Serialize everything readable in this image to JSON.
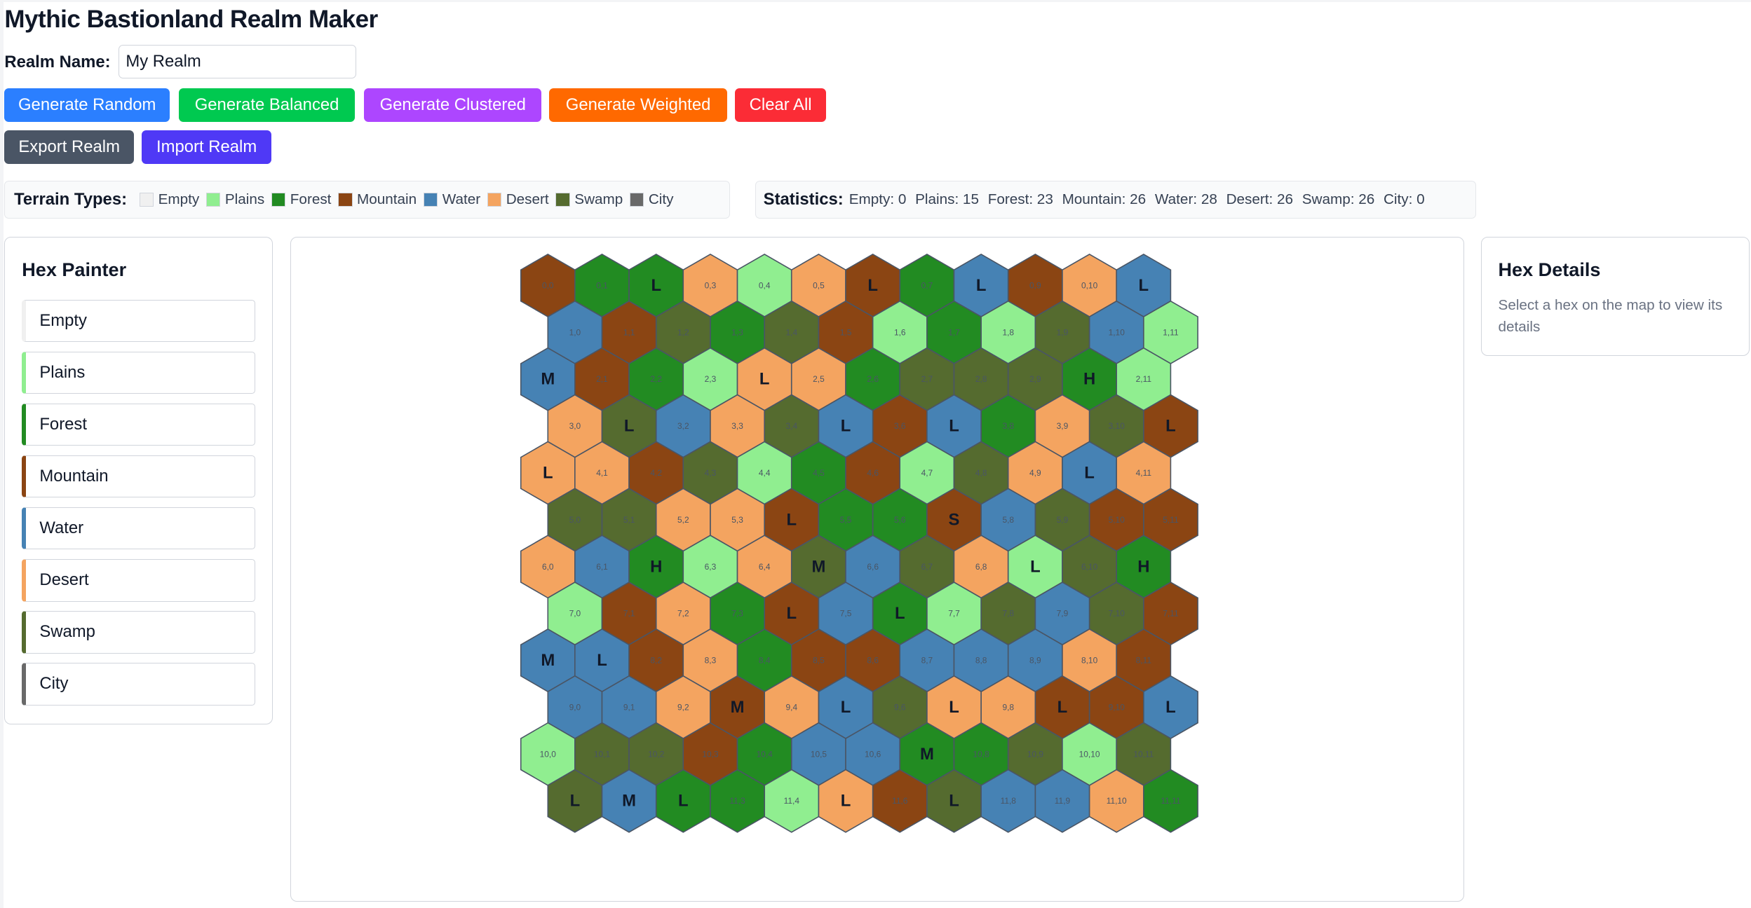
{
  "app": {
    "title": "Mythic Bastionland Realm Maker"
  },
  "realm_name": {
    "label": "Realm Name:",
    "value": "My Realm"
  },
  "toolbar": {
    "generate_random": "Generate Random",
    "generate_balanced": "Generate Balanced",
    "generate_clustered": "Generate Clustered",
    "generate_weighted": "Generate Weighted",
    "clear_all": "Clear All",
    "export": "Export Realm",
    "import": "Import Realm"
  },
  "button_colors": {
    "random": "#2b7fff",
    "balanced": "#00c950",
    "clustered": "#ad46ff",
    "weighted": "#ff6900",
    "clear": "#fb2c36",
    "export": "#4a5565",
    "import": "#4f39f6"
  },
  "terrain": {
    "label": "Terrain Types:",
    "types": [
      {
        "key": "empty",
        "name": "Empty",
        "color": "#f0f0f0"
      },
      {
        "key": "plains",
        "name": "Plains",
        "color": "#90ee90"
      },
      {
        "key": "forest",
        "name": "Forest",
        "color": "#228b22"
      },
      {
        "key": "mountain",
        "name": "Mountain",
        "color": "#8b4513"
      },
      {
        "key": "water",
        "name": "Water",
        "color": "#4682b4"
      },
      {
        "key": "desert",
        "name": "Desert",
        "color": "#f4a460"
      },
      {
        "key": "swamp",
        "name": "Swamp",
        "color": "#556b2f"
      },
      {
        "key": "city",
        "name": "City",
        "color": "#696969"
      }
    ]
  },
  "statistics": {
    "label": "Statistics:",
    "items": [
      "Empty: 0",
      "Plains: 15",
      "Forest: 23",
      "Mountain: 26",
      "Water: 28",
      "Desert: 26",
      "Swamp: 26",
      "City: 0"
    ]
  },
  "painter": {
    "title": "Hex Painter"
  },
  "details": {
    "title": "Hex Details",
    "placeholder": "Select a hex on the map to view its details"
  },
  "map": {
    "rows": [
      [
        "mountain",
        "forest",
        "forest",
        "desert",
        "plains",
        "desert",
        "mountain",
        "forest",
        "water",
        "mountain",
        "desert",
        "water"
      ],
      [
        "water",
        "mountain",
        "swamp",
        "forest",
        "swamp",
        "mountain",
        "plains",
        "forest",
        "plains",
        "swamp",
        "water",
        "plains"
      ],
      [
        "water",
        "mountain",
        "forest",
        "plains",
        "desert",
        "desert",
        "forest",
        "swamp",
        "swamp",
        "swamp",
        "forest",
        "plains"
      ],
      [
        "desert",
        "swamp",
        "water",
        "desert",
        "swamp",
        "water",
        "mountain",
        "water",
        "forest",
        "desert",
        "swamp",
        "mountain"
      ],
      [
        "desert",
        "desert",
        "mountain",
        "swamp",
        "plains",
        "forest",
        "mountain",
        "plains",
        "swamp",
        "desert",
        "water",
        "desert"
      ],
      [
        "swamp",
        "swamp",
        "desert",
        "desert",
        "mountain",
        "forest",
        "forest",
        "mountain",
        "water",
        "swamp",
        "mountain",
        "mountain"
      ],
      [
        "desert",
        "water",
        "forest",
        "plains",
        "desert",
        "swamp",
        "water",
        "swamp",
        "desert",
        "plains",
        "swamp",
        "forest"
      ],
      [
        "plains",
        "mountain",
        "desert",
        "forest",
        "mountain",
        "water",
        "forest",
        "plains",
        "swamp",
        "water",
        "swamp",
        "mountain"
      ],
      [
        "water",
        "water",
        "mountain",
        "desert",
        "forest",
        "mountain",
        "mountain",
        "water",
        "water",
        "water",
        "desert",
        "mountain"
      ],
      [
        "water",
        "water",
        "desert",
        "mountain",
        "desert",
        "water",
        "swamp",
        "desert",
        "desert",
        "mountain",
        "mountain",
        "water"
      ],
      [
        "plains",
        "swamp",
        "swamp",
        "mountain",
        "forest",
        "water",
        "water",
        "forest",
        "forest",
        "swamp",
        "plains",
        "swamp"
      ],
      [
        "swamp",
        "water",
        "forest",
        "forest",
        "plains",
        "desert",
        "mountain",
        "swamp",
        "water",
        "water",
        "desert",
        "forest"
      ]
    ],
    "markers": {
      "0,2": "L",
      "0,6": "L",
      "0,8": "L",
      "0,11": "L",
      "2,0": "M",
      "2,4": "L",
      "2,10": "H",
      "3,1": "L",
      "3,5": "L",
      "3,7": "L",
      "3,11": "L",
      "4,0": "L",
      "4,10": "L",
      "5,4": "L",
      "5,7": "S",
      "6,2": "H",
      "6,5": "M",
      "6,9": "L",
      "6,11": "H",
      "7,4": "L",
      "7,6": "L",
      "8,0": "M",
      "8,1": "L",
      "9,3": "M",
      "9,5": "L",
      "9,7": "L",
      "9,9": "L",
      "9,11": "L",
      "10,7": "M",
      "11,0": "L",
      "11,1": "M",
      "11,2": "L",
      "11,5": "L",
      "11,7": "L"
    }
  }
}
